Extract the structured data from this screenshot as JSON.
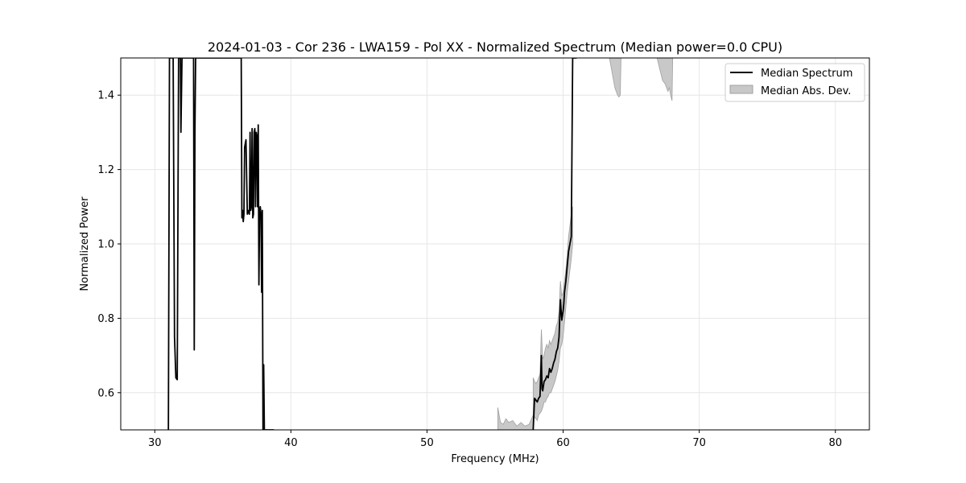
{
  "chart_data": {
    "type": "line",
    "title": "2024-01-03 - Cor 236 - LWA159 - Pol XX - Normalized Spectrum (Median power=0.0 CPU)",
    "xlabel": "Frequency (MHz)",
    "ylabel": "Normalized Power",
    "xlim": [
      27.5,
      82.5
    ],
    "ylim": [
      0.5,
      1.5
    ],
    "xticks": [
      30,
      40,
      50,
      60,
      70,
      80
    ],
    "yticks": [
      0.6,
      0.8,
      1.0,
      1.2,
      1.4
    ],
    "grid": true,
    "legend_position": "top-right",
    "colors": {
      "median_line": "#000000",
      "mad_fill": "#c8c8c8",
      "mad_edge": "#a0a0a0"
    },
    "series": [
      {
        "name": "Median Spectrum",
        "kind": "line",
        "x": [
          31.0,
          31.08,
          31.15,
          31.2,
          31.28,
          31.35,
          31.45,
          31.55,
          31.65,
          31.75,
          31.8,
          31.88,
          31.92,
          32.0,
          32.05,
          32.15,
          32.3,
          32.45,
          32.6,
          32.7,
          32.8,
          32.85,
          32.9,
          32.95,
          33.0,
          33.05,
          33.1,
          33.25,
          33.5,
          34.0,
          34.5,
          35.0,
          35.5,
          36.0,
          36.3,
          36.35,
          36.4,
          36.45,
          36.5,
          36.55,
          36.6,
          36.7,
          36.8,
          36.9,
          36.95,
          37.0,
          37.05,
          37.1,
          37.15,
          37.2,
          37.25,
          37.3,
          37.35,
          37.4,
          37.45,
          37.5,
          37.55,
          37.6,
          37.65,
          37.7,
          37.75,
          37.8,
          37.85,
          37.9,
          37.95,
          38.0,
          38.05,
          38.1,
          38.15,
          38.2,
          38.25,
          38.3,
          38.35,
          38.4,
          38.45,
          38.5,
          38.55,
          38.6,
          38.65,
          38.7,
          38.75
        ],
        "y": [
          0.5,
          1.5,
          1.5,
          1.5,
          1.5,
          1.5,
          0.75,
          0.64,
          0.635,
          1.5,
          1.5,
          1.5,
          1.3,
          1.5,
          1.5,
          1.5,
          1.5,
          1.5,
          1.5,
          1.5,
          1.5,
          1.5,
          0.715,
          1.3,
          1.5,
          1.5,
          1.5,
          1.5,
          1.5,
          1.5,
          1.5,
          1.5,
          1.5,
          1.5,
          1.5,
          1.5,
          1.07,
          1.09,
          1.06,
          1.08,
          1.26,
          1.28,
          1.08,
          1.09,
          1.08,
          1.3,
          1.09,
          1.1,
          1.31,
          1.07,
          1.08,
          1.3,
          1.31,
          1.1,
          1.3,
          1.29,
          1.1,
          1.32,
          0.89,
          1.09,
          1.1,
          1.08,
          0.87,
          1.09,
          0.5,
          0.675,
          0.5,
          0.5,
          0.5,
          0.5,
          0.5,
          0.5,
          0.5,
          0.5,
          0.5,
          0.5,
          0.5,
          0.5,
          0.5,
          0.5,
          0.5
        ]
      },
      {
        "name": "Median Spectrum",
        "kind": "line",
        "x": [
          57.8,
          57.9,
          58.0,
          58.1,
          58.2,
          58.3,
          58.4,
          58.45,
          58.5,
          58.6,
          58.7,
          58.8,
          58.9,
          59.0,
          59.1,
          59.2,
          59.3,
          59.4,
          59.5,
          59.6,
          59.7,
          59.8,
          59.9,
          60.0,
          60.05,
          60.1,
          60.2,
          60.3,
          60.4,
          60.5,
          60.6,
          60.7,
          60.8,
          60.9,
          60.95,
          61.0
        ],
        "y": [
          0.5,
          0.585,
          0.58,
          0.575,
          0.585,
          0.59,
          0.7,
          0.61,
          0.605,
          0.63,
          0.635,
          0.645,
          0.64,
          0.665,
          0.655,
          0.665,
          0.68,
          0.69,
          0.71,
          0.72,
          0.75,
          0.85,
          0.795,
          0.82,
          0.84,
          0.87,
          0.9,
          0.94,
          0.98,
          1.0,
          1.02,
          1.5,
          1.5,
          1.5,
          1.5,
          1.5
        ]
      }
    ],
    "bands": [
      {
        "name": "Median Abs. Dev.",
        "x": [
          55.2,
          55.4,
          55.6,
          55.8,
          56.0,
          56.3,
          56.6,
          56.9,
          57.2,
          57.5,
          57.8
        ],
        "lower": [
          0.5,
          0.5,
          0.5,
          0.5,
          0.5,
          0.5,
          0.5,
          0.5,
          0.5,
          0.5,
          0.5
        ],
        "upper": [
          0.56,
          0.52,
          0.515,
          0.53,
          0.52,
          0.525,
          0.51,
          0.52,
          0.51,
          0.515,
          0.54
        ]
      },
      {
        "name": "Median Abs. Dev.",
        "x": [
          57.8,
          57.9,
          58.0,
          58.1,
          58.2,
          58.3,
          58.4,
          58.5,
          58.6,
          58.7,
          58.8,
          58.9,
          59.0,
          59.1,
          59.2,
          59.3,
          59.4,
          59.5,
          59.6,
          59.7,
          59.8,
          59.9,
          60.0,
          60.1,
          60.2,
          60.3,
          60.4,
          60.5,
          60.6,
          60.7
        ],
        "lower": [
          0.52,
          0.535,
          0.53,
          0.525,
          0.54,
          0.545,
          0.55,
          0.56,
          0.575,
          0.575,
          0.585,
          0.59,
          0.6,
          0.6,
          0.61,
          0.62,
          0.63,
          0.645,
          0.66,
          0.685,
          0.72,
          0.73,
          0.75,
          0.79,
          0.83,
          0.87,
          0.9,
          0.93,
          0.96,
          1.0
        ],
        "upper": [
          0.64,
          0.63,
          0.625,
          0.63,
          0.64,
          0.65,
          0.77,
          0.69,
          0.7,
          0.72,
          0.73,
          0.72,
          0.74,
          0.73,
          0.74,
          0.75,
          0.76,
          0.78,
          0.79,
          0.82,
          0.9,
          0.86,
          0.87,
          0.9,
          0.93,
          0.97,
          1.02,
          1.05,
          1.08,
          1.1
        ]
      },
      {
        "name": "Median Abs. Dev.",
        "x": [
          63.4,
          63.6,
          63.8,
          64.0,
          64.1,
          64.2,
          64.25
        ],
        "lower": [
          1.5,
          1.46,
          1.42,
          1.4,
          1.395,
          1.4,
          1.5
        ],
        "upper": [
          1.5,
          1.5,
          1.5,
          1.5,
          1.5,
          1.5,
          1.5
        ]
      },
      {
        "name": "Median Abs. Dev.",
        "x": [
          66.9,
          67.1,
          67.3,
          67.5,
          67.7,
          67.8,
          67.9,
          68.0,
          68.05
        ],
        "lower": [
          1.5,
          1.47,
          1.44,
          1.43,
          1.41,
          1.42,
          1.4,
          1.385,
          1.5
        ],
        "upper": [
          1.5,
          1.5,
          1.5,
          1.5,
          1.5,
          1.5,
          1.5,
          1.5,
          1.5
        ]
      }
    ],
    "legend": [
      {
        "label": "Median Spectrum",
        "type": "line"
      },
      {
        "label": "Median Abs. Dev.",
        "type": "fill"
      }
    ]
  }
}
